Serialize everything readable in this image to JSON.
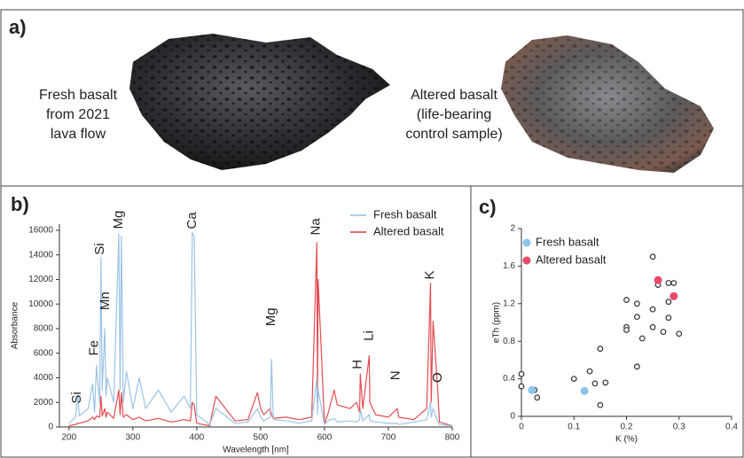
{
  "panel_a": {
    "label": "a)",
    "left_caption": [
      "Fresh basalt",
      "from 2021",
      "lava flow"
    ],
    "right_caption": [
      "Altered basalt",
      "(life-bearing",
      "control sample)"
    ]
  },
  "chart_data": [
    {
      "type": "line",
      "panel_label": "b)",
      "x_label": "Wavelength [nm]",
      "y_label": "Absorbance",
      "xlim": [
        185,
        800
      ],
      "xticks": [
        200,
        300,
        400,
        500,
        600,
        700,
        800
      ],
      "ylim": [
        0,
        16500
      ],
      "yticks": [
        0,
        2000,
        4000,
        6000,
        8000,
        10000,
        12000,
        14000,
        16000
      ],
      "x": [
        200,
        210,
        214,
        216,
        230,
        237,
        240,
        243,
        248,
        250,
        252,
        256,
        258,
        260,
        270,
        278,
        280,
        282,
        285,
        290,
        300,
        310,
        320,
        340,
        360,
        380,
        390,
        393,
        396,
        400,
        420,
        430,
        460,
        480,
        495,
        500,
        505,
        515,
        517,
        520,
        540,
        560,
        580,
        588,
        589,
        590,
        600,
        605,
        615,
        620,
        640,
        650,
        655,
        656,
        660,
        670,
        671,
        680,
        700,
        714,
        716,
        740,
        760,
        766,
        767,
        770,
        777,
        780,
        800
      ],
      "series": [
        {
          "name": "Fresh basalt",
          "color": "#92bde2",
          "values": [
            300,
            800,
            2500,
            900,
            1500,
            3500,
            1200,
            5000,
            2000,
            13800,
            3000,
            8000,
            2500,
            4000,
            2000,
            15700,
            3000,
            15500,
            2000,
            4500,
            1500,
            4000,
            1500,
            3000,
            1200,
            2500,
            1500,
            15800,
            15500,
            1000,
            200,
            1500,
            300,
            400,
            1500,
            800,
            500,
            800,
            5500,
            600,
            500,
            300,
            500,
            4000,
            1000,
            3000,
            200,
            500,
            700,
            400,
            500,
            400,
            600,
            1500,
            500,
            1000,
            500,
            400,
            300,
            300,
            200,
            400,
            600,
            2000,
            800,
            1500,
            500,
            200,
            100
          ]
        },
        {
          "name": "Altered basalt",
          "color": "#e0383e",
          "values": [
            100,
            200,
            300,
            300,
            500,
            800,
            600,
            900,
            800,
            2500,
            900,
            1500,
            800,
            1200,
            700,
            3000,
            1000,
            2800,
            800,
            1000,
            600,
            800,
            500,
            700,
            400,
            600,
            500,
            2000,
            1800,
            300,
            100,
            2500,
            500,
            600,
            2800,
            1500,
            1000,
            1500,
            1000,
            700,
            800,
            600,
            800,
            15000,
            2000,
            12000,
            300,
            1000,
            3000,
            1800,
            1500,
            2000,
            1200,
            4300,
            1500,
            5800,
            2000,
            1000,
            800,
            1500,
            800,
            600,
            1500,
            11700,
            2000,
            8600,
            3200,
            400,
            100
          ]
        }
      ],
      "annotations": [
        {
          "text": "Si",
          "x": 213,
          "y": 1900
        },
        {
          "text": "Fe",
          "x": 240,
          "y": 5800
        },
        {
          "text": "Si",
          "x": 249,
          "y": 14000
        },
        {
          "text": "Mn",
          "x": 257,
          "y": 9500
        },
        {
          "text": "Mg",
          "x": 278,
          "y": 16100
        },
        {
          "text": "Ca",
          "x": 393,
          "y": 16100
        },
        {
          "text": "Mg",
          "x": 517,
          "y": 8200
        },
        {
          "text": "Na",
          "x": 587,
          "y": 15600
        },
        {
          "text": "H",
          "x": 652,
          "y": 4700
        },
        {
          "text": "Li",
          "x": 670,
          "y": 7000
        },
        {
          "text": "N",
          "x": 712,
          "y": 3800
        },
        {
          "text": "K",
          "x": 765,
          "y": 12000
        },
        {
          "text": "O",
          "x": 778,
          "y": 3600
        }
      ]
    },
    {
      "type": "scatter",
      "panel_label": "c)",
      "x_label": "K (%)",
      "y_label": "eTh (ppm)",
      "xlim": [
        0,
        0.4
      ],
      "xticks": [
        0,
        0.1,
        0.2,
        0.3,
        0.4
      ],
      "ylim": [
        0,
        2
      ],
      "yticks": [
        0,
        0.4,
        0.8,
        1.2,
        1.6,
        2
      ],
      "series": [
        {
          "color": "#333333",
          "marker": "hollow",
          "x": [
            0,
            0,
            0.025,
            0.03,
            0.1,
            0.13,
            0.14,
            0.15,
            0.15,
            0.16,
            0.2,
            0.2,
            0.2,
            0.22,
            0.22,
            0.22,
            0.23,
            0.25,
            0.25,
            0.25,
            0.26,
            0.27,
            0.28,
            0.29,
            0.28,
            0.28,
            0.3
          ],
          "values": [
            0.45,
            0.32,
            0.28,
            0.2,
            0.4,
            0.48,
            0.35,
            0.72,
            0.12,
            0.36,
            0.95,
            0.92,
            1.24,
            1.06,
            1.2,
            0.53,
            0.83,
            1.7,
            1.14,
            0.95,
            1.4,
            0.9,
            1.42,
            1.42,
            1.22,
            1.05,
            0.88
          ]
        },
        {
          "name": "Fresh basalt",
          "color": "#8cc4ea",
          "marker": "filled",
          "x": [
            0.02,
            0.12
          ],
          "values": [
            0.28,
            0.27
          ]
        },
        {
          "name": "Altered basalt",
          "color": "#e84a68",
          "marker": "filled",
          "x": [
            0.26,
            0.29
          ],
          "values": [
            1.45,
            1.28
          ]
        }
      ]
    }
  ]
}
